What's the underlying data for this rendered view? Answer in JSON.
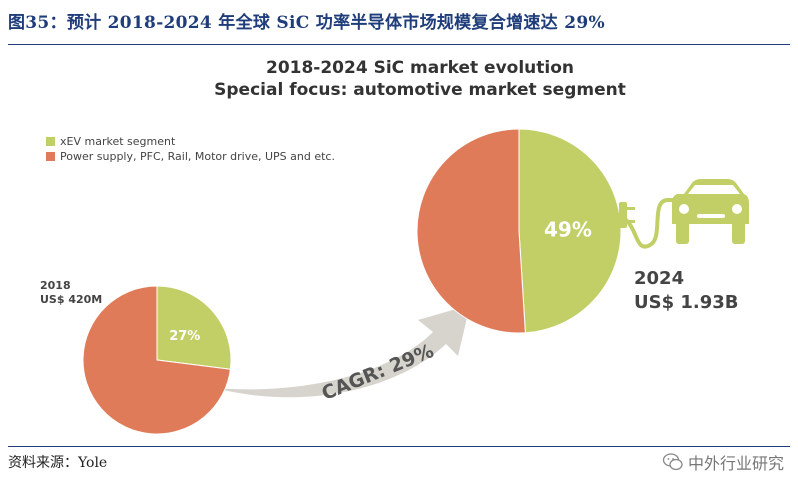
{
  "figure_title": "图35：预计 2018-2024 年全球 SiC 功率半导体市场规模复合增速达 29%",
  "source": "资料来源：Yole",
  "watermark": "中外行业研究",
  "colors": {
    "xev": "#c2cf66",
    "other": "#e07b5a",
    "arrow": "#d7d4ce",
    "title_blue": "#1f3d7a"
  },
  "chart_data": {
    "type": "pie",
    "title": "2018-2024 SiC market evolution",
    "subtitle": "Special focus: automotive market segment",
    "legend": [
      {
        "name": "xEV market segment",
        "color": "#c2cf66"
      },
      {
        "name": "Power supply, PFC, Rail, Motor drive, UPS and etc.",
        "color": "#e07b5a"
      }
    ],
    "pies": [
      {
        "year": "2018",
        "market": "US$ 420M",
        "slices": [
          {
            "name": "xEV market segment",
            "value": 27,
            "label": "27%"
          },
          {
            "name": "Power supply, PFC, Rail, Motor drive, UPS and etc.",
            "value": 73
          }
        ]
      },
      {
        "year": "2024",
        "market": "US$ 1.93B",
        "slices": [
          {
            "name": "xEV market segment",
            "value": 49,
            "label": "49%"
          },
          {
            "name": "Power supply, PFC, Rail, Motor drive, UPS and etc.",
            "value": 51
          }
        ]
      }
    ],
    "annotation": "CAGR: 29%",
    "icons": [
      "plug-icon",
      "car-icon"
    ]
  }
}
